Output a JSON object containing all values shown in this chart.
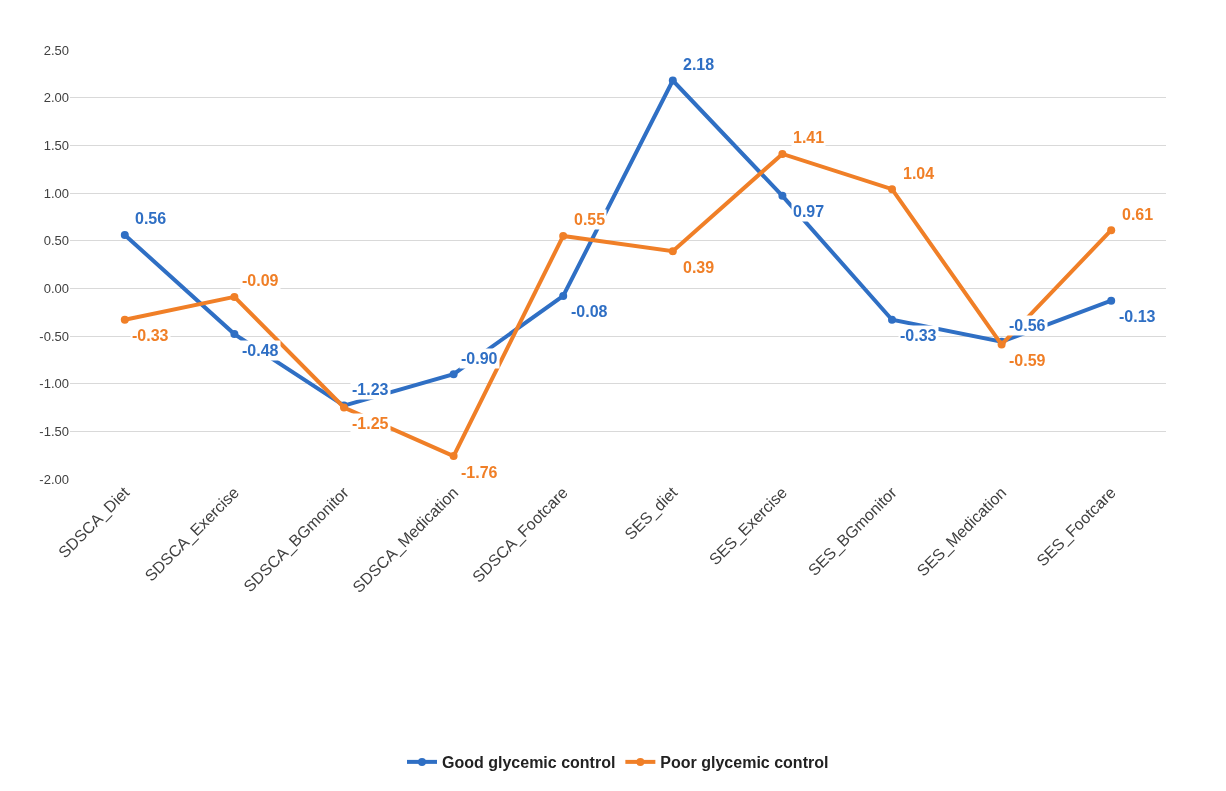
{
  "chart_data": {
    "type": "line",
    "categories": [
      "SDSCA_Diet",
      "SDSCA_Exercise",
      "SDSCA_BGmonitor",
      "SDSCA_Medication",
      "SDSCA_Footcare",
      "SES_diet",
      "SES_Exercise",
      "SES_BGmonitor",
      "SES_Medication",
      "SES_Footcare"
    ],
    "series": [
      {
        "name": "Good glycemic control",
        "color": "#2f6fc4",
        "values": [
          0.56,
          -0.48,
          -1.23,
          -0.9,
          -0.08,
          2.18,
          0.97,
          -0.33,
          -0.56,
          -0.13
        ],
        "value_labels": [
          "0.56",
          "-0.48",
          "-1.23",
          "-0.90",
          "-0.08",
          "2.18",
          "0.97",
          "-0.33",
          "-0.56",
          "-0.13"
        ]
      },
      {
        "name": "Poor glycemic control",
        "color": "#f07f27",
        "values": [
          -0.33,
          -0.09,
          -1.25,
          -1.76,
          0.55,
          0.39,
          1.41,
          1.04,
          -0.59,
          0.61
        ],
        "value_labels": [
          "-0.33",
          "-0.09",
          "-1.25",
          "-1.76",
          "0.55",
          "0.39",
          "1.41",
          "1.04",
          "-0.59",
          "0.61"
        ]
      }
    ],
    "ylim": [
      -2.0,
      2.5
    ],
    "yticks": [
      {
        "value": -2.0,
        "label": "-2.00"
      },
      {
        "value": -1.5,
        "label": "-1.50"
      },
      {
        "value": -1.0,
        "label": "-1.00"
      },
      {
        "value": -0.5,
        "label": "-0.50"
      },
      {
        "value": 0.0,
        "label": "0.00"
      },
      {
        "value": 0.5,
        "label": "0.50"
      },
      {
        "value": 1.0,
        "label": "1.00"
      },
      {
        "value": 1.5,
        "label": "1.50"
      },
      {
        "value": 2.0,
        "label": "2.00"
      },
      {
        "value": 2.5,
        "label": "2.50"
      }
    ],
    "grid": "y",
    "legend": "bottom",
    "marker": "circle",
    "line_style": "solid"
  }
}
